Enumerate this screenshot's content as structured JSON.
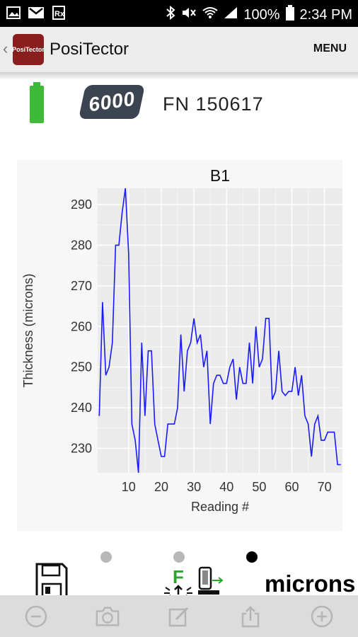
{
  "status_bar": {
    "battery_percent": "100%",
    "time": "2:34 PM",
    "left_icons": [
      "image-icon",
      "gmail-icon",
      "prescription-icon"
    ],
    "right_icons": [
      "bluetooth-icon",
      "mute-icon",
      "wifi-icon",
      "signal-icon",
      "battery-icon"
    ]
  },
  "app_bar": {
    "title": "PosiTector",
    "logo_text": "PosiTector",
    "menu_label": "MENU"
  },
  "device": {
    "model": "6000",
    "fn_label": "FN 150617",
    "battery_icon": "battery-full-icon",
    "battery_color": "#3dbb38"
  },
  "chart_data": {
    "type": "line",
    "title": "B1",
    "xlabel": "Reading #",
    "ylabel": "Thickness (microns)",
    "xlim": [
      0.5,
      75.5
    ],
    "ylim": [
      224,
      294
    ],
    "x_ticks": [
      10,
      20,
      30,
      40,
      50,
      60,
      70
    ],
    "y_ticks": [
      230,
      240,
      250,
      260,
      270,
      280,
      290
    ],
    "grid": true,
    "line_color": "#1a1aff",
    "series": [
      {
        "x": [
          1,
          2,
          3,
          4,
          5,
          6,
          7,
          8,
          9,
          10,
          11,
          12,
          13,
          14,
          15,
          16,
          17,
          18,
          19,
          20,
          21,
          22,
          23,
          24,
          25,
          26,
          27,
          28,
          29,
          30,
          31,
          32,
          33,
          34,
          35,
          36,
          37,
          38,
          39,
          40,
          41,
          42,
          43,
          44,
          45,
          46,
          47,
          48,
          49,
          50,
          51,
          52,
          53,
          54,
          55,
          56,
          57,
          58,
          59,
          60,
          61,
          62,
          63,
          64,
          65,
          66,
          67,
          68,
          69,
          70,
          71,
          72,
          73,
          74,
          75
        ],
        "values": [
          238,
          266,
          248,
          250,
          256,
          280,
          280,
          288,
          294,
          278,
          236,
          232,
          224,
          256,
          238,
          254,
          254,
          236,
          232,
          228,
          228,
          236,
          236,
          236,
          240,
          258,
          244,
          254,
          256,
          262,
          256,
          258,
          250,
          254,
          236,
          246,
          248,
          248,
          246,
          246,
          250,
          252,
          242,
          250,
          246,
          246,
          256,
          246,
          260,
          250,
          252,
          262,
          262,
          242,
          244,
          254,
          244,
          243,
          244,
          244,
          250,
          243,
          248,
          238,
          236,
          228,
          236,
          238,
          232,
          232,
          234,
          234,
          234,
          226,
          226
        ]
      }
    ]
  },
  "indicators": {
    "dots": [
      {
        "color": "#b8b8b8"
      },
      {
        "color": "#b8b8b8"
      },
      {
        "color": "#000000"
      }
    ],
    "probe_letter": "F",
    "probe_letter_color": "#2aa52a",
    "units": "microns"
  },
  "bottom_bar": {
    "buttons": [
      "minus-circle-icon",
      "camera-icon",
      "edit-note-icon",
      "share-icon",
      "plus-circle-icon"
    ]
  }
}
